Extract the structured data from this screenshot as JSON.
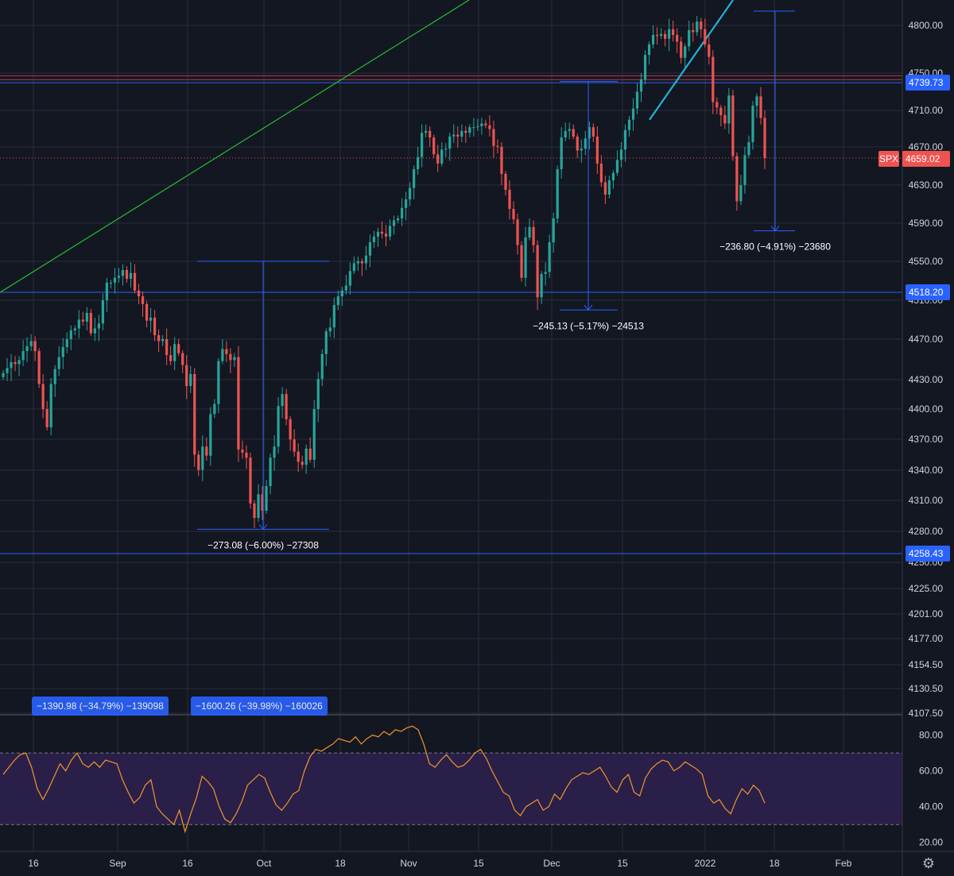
{
  "chart_data": [
    {
      "type": "candlestick",
      "symbol": "SPX",
      "last_price": "4659.02",
      "price_axis_ticks": [
        "4800.00",
        "4750.00",
        "4710.00",
        "4670.00",
        "4630.00",
        "4590.00",
        "4550.00",
        "4510.00",
        "4470.00",
        "4430.00",
        "4400.00",
        "4370.00",
        "4340.00",
        "4310.00",
        "4280.00",
        "4250.00",
        "4225.00",
        "4201.00",
        "4177.00",
        "4154.50",
        "4130.50",
        "4107.50"
      ],
      "time_axis_ticks": [
        "16",
        "Sep",
        "16",
        "Oct",
        "18",
        "Nov",
        "15",
        "Dec",
        "15",
        "2022",
        "18",
        "Feb"
      ],
      "ylim": [
        4107.5,
        4815
      ],
      "horizontal_levels": [
        {
          "value": 4739.73,
          "label": "4739.73",
          "color": "#2962ff"
        },
        {
          "value": 4518.2,
          "label": "4518.20",
          "color": "#2962ff"
        },
        {
          "value": 4258.43,
          "label": "4258.43",
          "color": "#2962ff"
        },
        {
          "value": 4747,
          "label": "",
          "color": "#b23a48"
        },
        {
          "value": 4743,
          "label": "",
          "color": "#b23a48"
        }
      ],
      "measurements": [
        {
          "text": "−273.08 (−6.00%) −27308",
          "from": 4550,
          "to": 4282
        },
        {
          "text": "−245.13 (−5.17%) −24513",
          "from": 4741,
          "to": 4500
        },
        {
          "text": "−236.80 (−4.91%) −23680",
          "from": 4815,
          "to": 4582
        }
      ],
      "long_range_measurements": [
        "−1390.98 (−34.79%) −139098",
        "−1600.26 (−39.98%) −160026"
      ],
      "candles_close": [
        4436,
        4441,
        4447,
        4445,
        4449,
        4458,
        4463,
        4468,
        4458,
        4425,
        4400,
        4382,
        4425,
        4440,
        4452,
        4462,
        4470,
        4479,
        4481,
        4490,
        4488,
        4497,
        4476,
        4481,
        4486,
        4510,
        4528,
        4528,
        4533,
        4535,
        4541,
        4532,
        4538,
        4520,
        4514,
        4506,
        4489,
        4492,
        4474,
        4468,
        4470,
        4454,
        4448,
        4465,
        4456,
        4444,
        4423,
        4435,
        4355,
        4340,
        4363,
        4354,
        4395,
        4405,
        4448,
        4460,
        4455,
        4449,
        4452,
        4360,
        4357,
        4352,
        4307,
        4293,
        4316,
        4300,
        4324,
        4352,
        4363,
        4403,
        4415,
        4390,
        4370,
        4358,
        4348,
        4345,
        4361,
        4350,
        4400,
        4430,
        4455,
        4478,
        4482,
        4505,
        4514,
        4520,
        4525,
        4540,
        4548,
        4550,
        4548,
        4556,
        4570,
        4576,
        4581,
        4579,
        4576,
        4587,
        4593,
        4595,
        4606,
        4615,
        4627,
        4647,
        4660,
        4686,
        4688,
        4681,
        4663,
        4653,
        4668,
        4669,
        4682,
        4684,
        4682,
        4688,
        4686,
        4692,
        4692,
        4693,
        4696,
        4694,
        4690,
        4672,
        4671,
        4642,
        4625,
        4605,
        4594,
        4567,
        4533,
        4575,
        4586,
        4567,
        4513,
        4537,
        4539,
        4570,
        4595,
        4647,
        4681,
        4688,
        4690,
        4682,
        4667,
        4669,
        4680,
        4692,
        4682,
        4653,
        4633,
        4620,
        4635,
        4643,
        4657,
        4668,
        4689,
        4700,
        4712,
        4730,
        4743,
        4769,
        4780,
        4790,
        4789,
        4791,
        4786,
        4796,
        4790,
        4783,
        4766,
        4778,
        4795,
        4793,
        4804,
        4796,
        4780,
        4767,
        4719,
        4713,
        4705,
        4696,
        4726,
        4661,
        4613,
        4630,
        4662,
        4676,
        4715,
        4725,
        4702,
        4659
      ]
    },
    {
      "type": "line",
      "indicator_axis_ticks": [
        "80.00",
        "60.00",
        "40.00",
        "20.00"
      ],
      "ylim": [
        15,
        90
      ],
      "bands": [
        30,
        70
      ],
      "values": [
        58,
        62,
        66,
        69,
        70,
        62,
        50,
        44,
        50,
        57,
        64,
        60,
        66,
        70,
        64,
        62,
        65,
        62,
        66,
        65,
        64,
        55,
        48,
        42,
        45,
        52,
        55,
        40,
        36,
        33,
        30,
        38,
        26,
        36,
        45,
        57,
        54,
        50,
        40,
        33,
        31,
        36,
        43,
        52,
        55,
        58,
        56,
        48,
        41,
        38,
        42,
        47,
        49,
        60,
        68,
        72,
        71,
        73,
        75,
        78,
        77,
        76,
        79,
        75,
        78,
        80,
        79,
        82,
        80,
        83,
        82,
        84,
        85,
        83,
        75,
        64,
        62,
        66,
        69,
        65,
        62,
        63,
        66,
        70,
        72,
        67,
        60,
        54,
        48,
        46,
        38,
        35,
        40,
        42,
        44,
        38,
        40,
        47,
        44,
        50,
        55,
        57,
        59,
        58,
        60,
        62,
        57,
        51,
        48,
        55,
        58,
        48,
        46,
        56,
        61,
        64,
        66,
        65,
        60,
        62,
        65,
        63,
        61,
        58,
        46,
        42,
        44,
        39,
        36,
        44,
        50,
        47,
        52,
        49,
        42
      ]
    }
  ],
  "colors": {
    "background": "#131722",
    "up": "#26a69a",
    "down": "#ef5350",
    "grid": "#2a2e39",
    "indicator_line": "#f0962e",
    "indicator_band": "#2a1f48",
    "level_line": "#2962ff"
  },
  "icons": {
    "settings": "gear-icon"
  }
}
